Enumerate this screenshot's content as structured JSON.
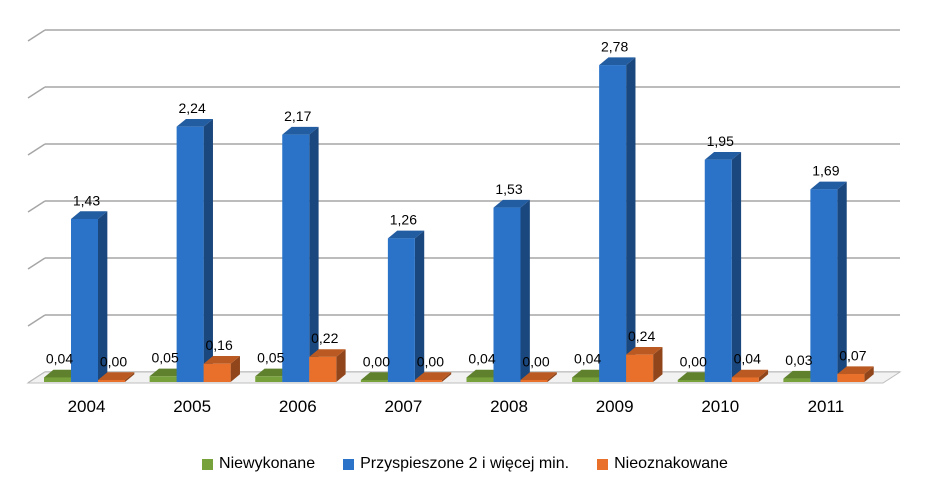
{
  "chart_data": {
    "type": "bar",
    "three_d": true,
    "categories": [
      "2004",
      "2005",
      "2006",
      "2007",
      "2008",
      "2009",
      "2010",
      "2011"
    ],
    "series": [
      {
        "name": "Niewykonane",
        "color": "#77a13a",
        "values": [
          0.04,
          0.05,
          0.05,
          0.0,
          0.04,
          0.04,
          0.0,
          0.03
        ],
        "labels": [
          "0,04",
          "0,05",
          "0,05",
          "0,00",
          "0,04",
          "0,04",
          "0,00",
          "0,03"
        ]
      },
      {
        "name": "Przyspieszone 2 i więcej min.",
        "color": "#2a73c9",
        "values": [
          1.43,
          2.24,
          2.17,
          1.26,
          1.53,
          2.78,
          1.95,
          1.69
        ],
        "labels": [
          "1,43",
          "2,24",
          "2,17",
          "1,26",
          "1,53",
          "2,78",
          "1,95",
          "1,69"
        ]
      },
      {
        "name": "Nieoznakowane",
        "color": "#e8702a",
        "values": [
          0.0,
          0.16,
          0.22,
          0.0,
          0.0,
          0.24,
          0.04,
          0.07
        ],
        "labels": [
          "0,00",
          "0,16",
          "0,22",
          "0,00",
          "0,00",
          "0,24",
          "0,04",
          "0,07"
        ]
      }
    ],
    "ylim": [
      0,
      3
    ],
    "grid": true,
    "legend_position": "bottom"
  }
}
